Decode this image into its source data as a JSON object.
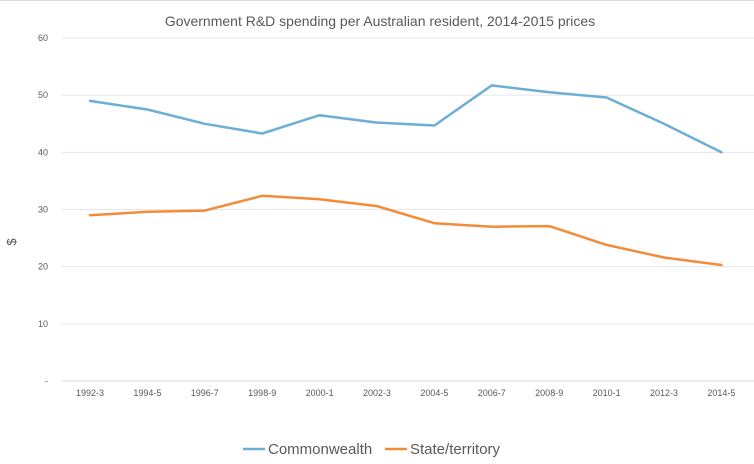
{
  "chart_data": {
    "type": "line",
    "title": "Government R&D spending per Australian resident, 2014-2015 prices",
    "xlabel": "",
    "ylabel": "$",
    "ylim": [
      0,
      60
    ],
    "yticks": [
      0,
      10,
      20,
      30,
      40,
      50,
      60
    ],
    "ytick_labels": [
      "-",
      "10",
      "20",
      "30",
      "40",
      "50",
      "60"
    ],
    "grid": true,
    "legend_position": "bottom",
    "categories": [
      "1992-3",
      "1994-5",
      "1996-7",
      "1998-9",
      "2000-1",
      "2002-3",
      "2004-5",
      "2006-7",
      "2008-9",
      "2010-1",
      "2012-3",
      "2014-5"
    ],
    "series": [
      {
        "name": "Commonwealth",
        "color": "#6baed6",
        "values": [
          49.0,
          47.5,
          45.0,
          43.3,
          46.5,
          45.2,
          44.7,
          51.7,
          50.5,
          49.6,
          45.0,
          40.0
        ]
      },
      {
        "name": "State/territory",
        "color": "#f28c38",
        "values": [
          29.0,
          29.6,
          29.8,
          32.4,
          31.8,
          30.6,
          27.6,
          27.0,
          27.1,
          23.8,
          21.6,
          20.3
        ]
      }
    ]
  }
}
